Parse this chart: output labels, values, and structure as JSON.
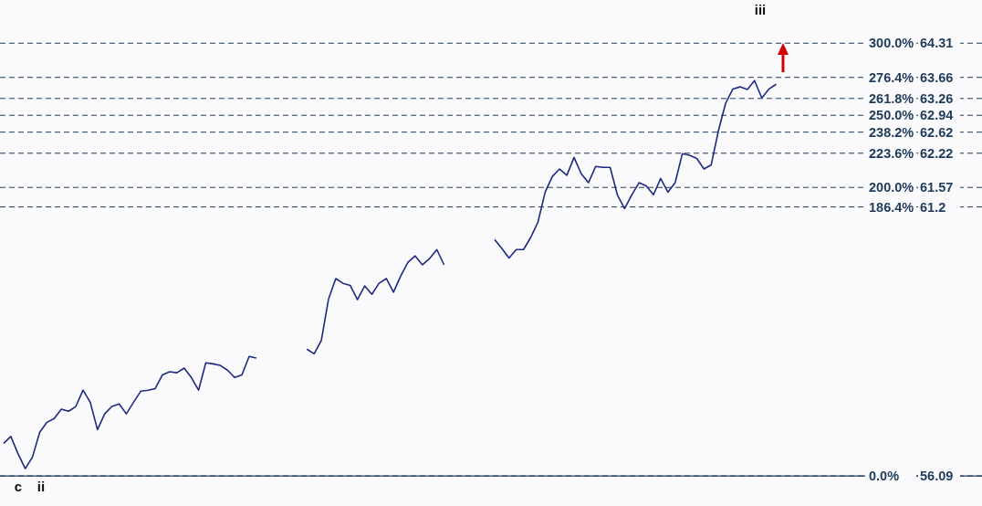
{
  "chart_data": {
    "type": "line",
    "categories": [
      null,
      null,
      null,
      null,
      null,
      null,
      null,
      null,
      null,
      null,
      null,
      null,
      null,
      null,
      null,
      null,
      null,
      null,
      null,
      null,
      null,
      null,
      null,
      null,
      null,
      null,
      null,
      null,
      null,
      null,
      null,
      null,
      null,
      null,
      null,
      null,
      null,
      null,
      null,
      null,
      null,
      null,
      null,
      null,
      null,
      null,
      null,
      null,
      null,
      null,
      null,
      null,
      null,
      null,
      null,
      null,
      null,
      null,
      null,
      null,
      null,
      null,
      null,
      null,
      null,
      null,
      null,
      null,
      null,
      null,
      null,
      null,
      null,
      null,
      null,
      null,
      null,
      null,
      null,
      null,
      null,
      null,
      null,
      null,
      null,
      null,
      null,
      null,
      null,
      null,
      null,
      null,
      null,
      null,
      null,
      null,
      null,
      null,
      null,
      null,
      null,
      null,
      null,
      null,
      null,
      null,
      null,
      null,
      null,
      null,
      null,
      null,
      null,
      null,
      null,
      null,
      null,
      null,
      null,
      null,
      null,
      null,
      null,
      null,
      null,
      null,
      null,
      null,
      null,
      null,
      null,
      null,
      null,
      null,
      null,
      null
    ],
    "series": [
      {
        "color": "#1c2a80",
        "values": [
          56.71,
          56.84,
          56.51,
          56.23,
          56.45,
          56.92,
          57.11,
          57.18,
          57.36,
          57.32,
          57.41,
          57.72,
          57.49,
          56.97,
          57.27,
          57.41,
          57.46,
          57.27,
          57.49,
          57.7,
          57.72,
          57.75,
          58.01,
          58.07,
          58.05,
          58.14,
          57.96,
          57.72,
          58.24,
          58.22,
          58.19,
          58.1,
          57.96,
          58.01,
          58.36,
          58.33,
          null,
          null,
          null,
          null,
          null,
          null,
          null,
          null,
          null,
          null,
          null,
          null,
          null,
          null,
          null,
          null,
          null,
          null,
          null,
          null,
          null,
          null,
          null,
          null,
          null,
          null,
          null,
          null,
          null,
          null,
          null,
          null,
          null,
          null,
          null,
          null,
          null,
          null,
          null,
          null,
          null,
          null,
          null,
          null,
          null,
          null,
          null,
          null,
          null,
          null,
          null,
          null,
          null,
          null,
          null,
          null,
          null,
          null,
          null,
          null,
          null,
          null,
          null,
          null,
          null,
          null,
          null,
          null,
          null,
          null,
          null,
          null,
          null,
          null,
          null,
          null,
          null,
          null,
          null,
          null,
          null,
          null,
          null,
          null,
          null,
          null,
          null,
          null,
          null,
          null,
          null,
          null,
          null,
          null,
          null,
          null,
          null,
          null,
          null,
          null
        ]
      },
      {
        "color": "#1c2a80",
        "values": [
          null,
          null,
          null,
          null,
          null,
          null,
          null,
          null,
          null,
          null,
          null,
          null,
          null,
          null,
          null,
          null,
          null,
          null,
          null,
          null,
          null,
          null,
          null,
          null,
          null,
          null,
          null,
          null,
          null,
          null,
          null,
          null,
          null,
          null,
          null,
          null,
          null,
          null,
          null,
          null,
          null,
          null,
          58.5,
          58.41,
          58.66,
          59.45,
          59.84,
          59.75,
          59.71,
          59.44,
          59.7,
          59.54,
          59.75,
          59.84,
          59.58,
          59.89,
          60.15,
          60.27,
          60.1,
          60.22,
          60.39,
          60.1,
          null,
          null,
          null,
          null,
          null,
          null,
          null,
          null,
          null,
          null,
          null,
          null,
          null,
          null,
          null,
          null,
          null,
          null,
          null,
          null,
          null,
          null,
          null,
          null,
          null,
          null,
          null,
          null,
          null,
          null,
          null,
          null,
          null,
          null,
          null,
          null,
          null,
          null,
          null,
          null,
          null,
          null,
          null,
          null,
          null,
          null,
          null,
          null,
          null,
          null,
          null,
          null,
          null,
          null,
          null,
          null,
          null,
          null,
          null,
          null,
          null,
          null,
          null,
          null,
          null,
          null,
          null,
          null,
          null,
          null,
          null,
          null,
          null,
          null
        ]
      },
      {
        "color": "#1c2a80",
        "values": [
          null,
          null,
          null,
          null,
          null,
          null,
          null,
          null,
          null,
          null,
          null,
          null,
          null,
          null,
          null,
          null,
          null,
          null,
          null,
          null,
          null,
          null,
          null,
          null,
          null,
          null,
          null,
          null,
          null,
          null,
          null,
          null,
          null,
          null,
          null,
          null,
          null,
          null,
          null,
          null,
          null,
          null,
          null,
          null,
          null,
          null,
          null,
          null,
          null,
          null,
          null,
          null,
          null,
          null,
          null,
          null,
          null,
          null,
          null,
          null,
          null,
          null,
          null,
          null,
          null,
          null,
          null,
          null,
          60.58,
          60.41,
          60.23,
          60.39,
          60.39,
          60.62,
          60.91,
          61.48,
          61.78,
          61.92,
          61.8,
          62.14,
          61.83,
          61.66,
          61.97,
          61.95,
          61.95,
          61.43,
          61.17,
          61.43,
          61.66,
          61.6,
          61.43,
          61.74,
          61.48,
          61.66,
          62.21,
          62.18,
          62.12,
          61.92,
          62.0,
          62.65,
          63.17,
          63.44,
          63.48,
          63.43,
          63.6,
          63.27,
          63.44,
          63.53,
          null,
          null,
          null,
          null,
          null,
          null,
          null,
          null,
          null,
          null,
          null,
          null,
          null,
          null,
          null,
          null,
          null,
          null,
          null,
          null,
          null,
          null,
          null,
          null,
          null,
          null,
          null,
          null
        ]
      }
    ],
    "ylim": [
      55.52,
      65.13
    ],
    "yticks": [
      64.31,
      63.66,
      63.26,
      62.94,
      62.62,
      62.22,
      61.57,
      61.2,
      56.09
    ],
    "grid": "y",
    "marker": "none",
    "line_style": "solid",
    "ref_lines": [
      {
        "axis": "y",
        "value": 56.09,
        "color": "#1f3b5a",
        "line_style": "solid"
      }
    ],
    "annotations": [
      "c",
      "ii",
      "iii",
      "300.0%",
      "276.4%",
      "261.8%",
      "250.0%",
      "238.2%",
      "223.6%",
      "200.0%",
      "186.4%",
      "0.0%"
    ]
  }
}
